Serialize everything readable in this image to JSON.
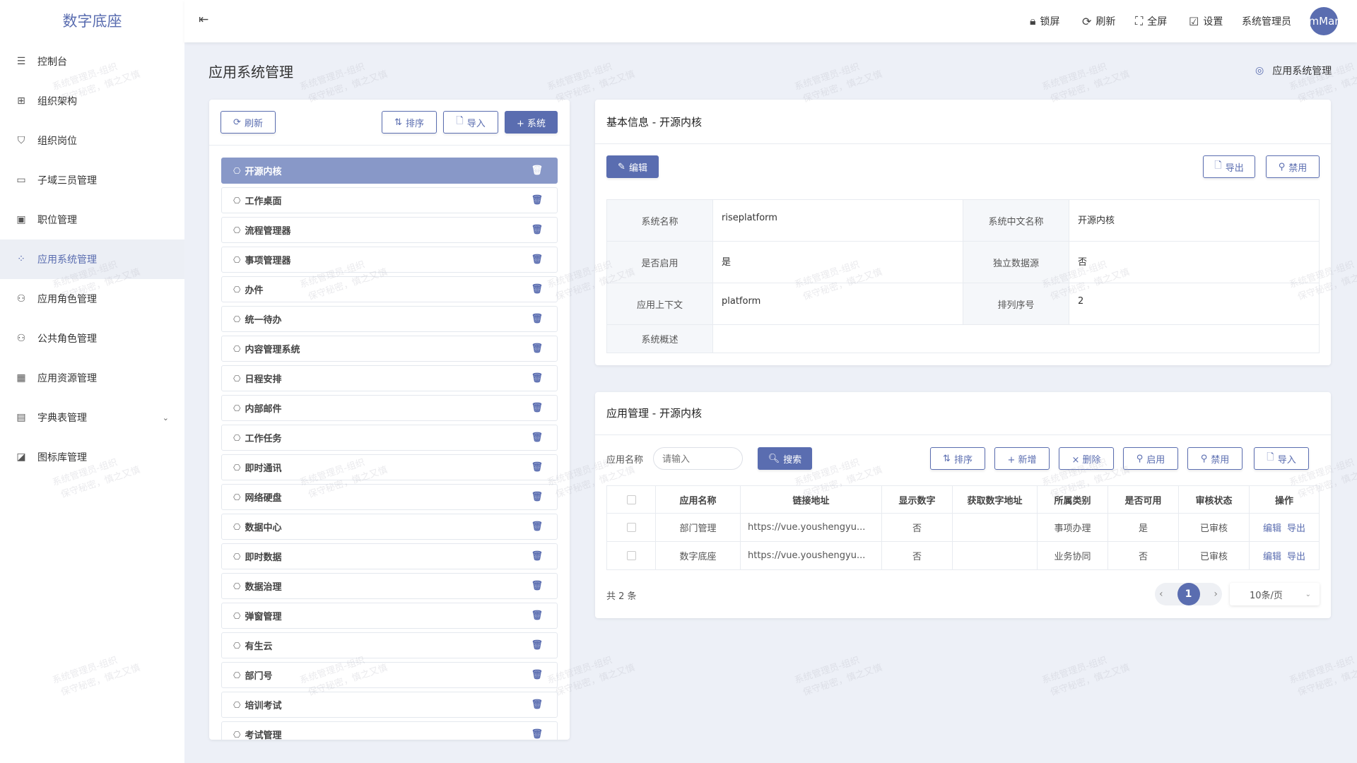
{
  "app": {
    "logo": "数字底座"
  },
  "sidebar": {
    "items": [
      {
        "label": "控制台",
        "icon": "sliders-icon",
        "glyph": "☰"
      },
      {
        "label": "组织架构",
        "icon": "org-tree-icon",
        "glyph": "⊞"
      },
      {
        "label": "组织岗位",
        "icon": "shield-user-icon",
        "glyph": "⛉"
      },
      {
        "label": "子域三员管理",
        "icon": "monitor-icon",
        "glyph": "▭"
      },
      {
        "label": "职位管理",
        "icon": "id-card-icon",
        "glyph": "▣"
      },
      {
        "label": "应用系统管理",
        "icon": "apps-icon",
        "glyph": "⁘",
        "active": true
      },
      {
        "label": "应用角色管理",
        "icon": "user-group-icon",
        "glyph": "⚇"
      },
      {
        "label": "公共角色管理",
        "icon": "user-list-icon",
        "glyph": "⚇"
      },
      {
        "label": "应用资源管理",
        "icon": "grid-icon",
        "glyph": "▦"
      },
      {
        "label": "字典表管理",
        "icon": "book-icon",
        "glyph": "▤",
        "chevron": true
      },
      {
        "label": "图标库管理",
        "icon": "image-edit-icon",
        "glyph": "◪"
      }
    ]
  },
  "header": {
    "collapse_icon": "menu-fold-icon",
    "lock": "锁屏",
    "refresh": "刷新",
    "fullscreen": "全屏",
    "settings": "设置",
    "user": "系统管理员",
    "avatar": "mMar"
  },
  "page": {
    "title": "应用系统管理",
    "breadcrumb": "应用系统管理"
  },
  "left_panel": {
    "refresh": "刷新",
    "sort": "排序",
    "import": "导入",
    "add_system": "+ 系统",
    "systems": [
      "开源内核",
      "工作桌面",
      "流程管理器",
      "事项管理器",
      "办件",
      "统一待办",
      "内容管理系统",
      "日程安排",
      "内部邮件",
      "工作任务",
      "即时通讯",
      "网络硬盘",
      "数据中心",
      "即时数据",
      "数据治理",
      "弹窗管理",
      "有生云",
      "部门号",
      "培训考试",
      "考试管理"
    ],
    "selected": "开源内核"
  },
  "basic_info": {
    "title": "基本信息 - 开源内核",
    "edit": "编辑",
    "export": "导出",
    "disable": "禁用",
    "fields": {
      "name_label": "系统名称",
      "name": "riseplatform",
      "cn_name_label": "系统中文名称",
      "cn_name": "开源内核",
      "enabled_label": "是否启用",
      "enabled": "是",
      "standalone_label": "独立数据源",
      "standalone": "否",
      "context_label": "应用上下文",
      "context": "platform",
      "order_label": "排列序号",
      "order": "2",
      "desc_label": "系统概述",
      "desc": ""
    }
  },
  "apps": {
    "title": "应用管理 - 开源内核",
    "search_label": "应用名称",
    "search_placeholder": "请输入",
    "search": "搜索",
    "sort": "排序",
    "add": "+ 新增",
    "delete": "× 删除",
    "enable": "启用",
    "disable": "禁用",
    "import": "导入",
    "columns": [
      "应用名称",
      "链接地址",
      "显示数字",
      "获取数字地址",
      "所属类别",
      "是否可用",
      "审核状态",
      "操作"
    ],
    "rows": [
      {
        "name": "部门管理",
        "url": "https://vue.youshengyu...",
        "show_num": "否",
        "num_url": "",
        "category": "事项办理",
        "available": "是",
        "status": "已审核",
        "edit": "编辑",
        "export": "导出"
      },
      {
        "name": "数字底座",
        "url": "https://vue.youshengyu...",
        "show_num": "否",
        "num_url": "",
        "category": "业务协同",
        "available": "否",
        "status": "已审核",
        "edit": "编辑",
        "export": "导出"
      }
    ],
    "total": "共 2 条",
    "current_page": "1",
    "page_size": "10条/页"
  },
  "watermark": {
    "line1": "系统管理员-组织",
    "line2": "保守秘密，慎之又慎"
  },
  "colors": {
    "accent": "#5a6db0",
    "selected_item": "#8898c8",
    "background": "#edf0f7"
  }
}
